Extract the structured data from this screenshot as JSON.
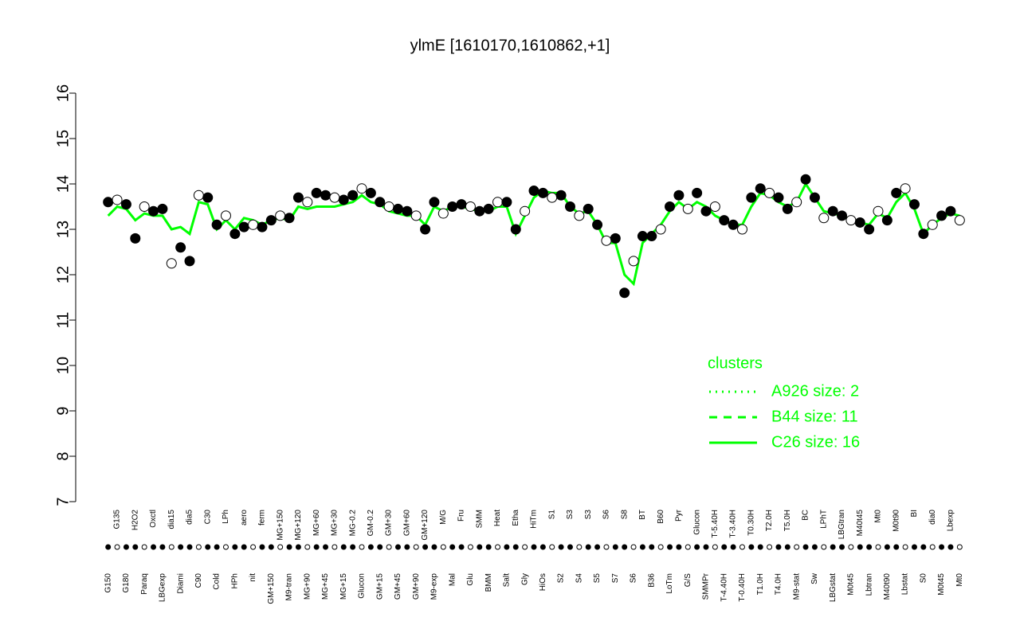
{
  "chart_data": {
    "type": "scatter",
    "title": "ylmE [1610170,1610862,+1]",
    "categories": [
      "G150",
      "G135",
      "G180",
      "H2O2",
      "Paraq",
      "Oxctl",
      "LBGexp",
      "dia15",
      "Diami",
      "dia5",
      "C90",
      "C30",
      "Cold",
      "LPh",
      "HPh",
      "aero",
      "nit",
      "ferm",
      "GM+150",
      "MG+150",
      "M9-tran",
      "MG+120",
      "MG+90",
      "MG+60",
      "MG+45",
      "MG+30",
      "MG+15",
      "MG-0.2",
      "Glucon",
      "GM-0.2",
      "GM+15",
      "GM+30",
      "GM+45",
      "GM+60",
      "GM+90",
      "GM+120",
      "M9-exp",
      "M/G",
      "Mal",
      "Fru",
      "Glu",
      "SMM",
      "BMM",
      "Heat",
      "Salt",
      "Etha",
      "Gly",
      "HiTm",
      "HiOs",
      "S1",
      "S2",
      "S3",
      "S4",
      "S3",
      "S5",
      "S6",
      "S7",
      "S8",
      "S6",
      "BT",
      "B36",
      "B60",
      "LoTm",
      "Pyr",
      "G/S",
      "Glucon",
      "SMMPr",
      "T-5.40H",
      "T-4.40H",
      "T-3.40H",
      "T-0.40H",
      "T0.30H",
      "T1.0H",
      "T2.0H",
      "T4.0H",
      "T5.0H",
      "M9-stat",
      "BC",
      "Sw",
      "LPhT",
      "LBGstat",
      "LBGtran",
      "M0t45",
      "M40t45",
      "Lbtran",
      "Mt0",
      "M40t90",
      "M0t90",
      "Lbstat",
      "BI",
      "S0",
      "dia0",
      "M0t45",
      "Lbexp",
      "Mt0"
    ],
    "values": [
      13.6,
      13.65,
      13.55,
      12.8,
      13.5,
      13.4,
      13.45,
      12.25,
      12.6,
      12.3,
      13.75,
      13.7,
      13.1,
      13.3,
      12.9,
      13.05,
      13.1,
      13.05,
      13.2,
      13.3,
      13.25,
      13.7,
      13.6,
      13.8,
      13.75,
      13.7,
      13.65,
      13.75,
      13.9,
      13.8,
      13.6,
      13.5,
      13.45,
      13.4,
      13.3,
      13.0,
      13.6,
      13.35,
      13.5,
      13.55,
      13.5,
      13.4,
      13.45,
      13.6,
      13.6,
      13.0,
      13.4,
      13.85,
      13.8,
      13.7,
      13.75,
      13.5,
      13.3,
      13.45,
      13.1,
      12.75,
      12.8,
      11.6,
      12.3,
      12.85,
      12.85,
      13.0,
      13.5,
      13.75,
      13.45,
      13.8,
      13.4,
      13.5,
      13.2,
      13.1,
      13.0,
      13.7,
      13.9,
      13.8,
      13.7,
      13.45,
      13.6,
      14.1,
      13.7,
      13.25,
      13.4,
      13.3,
      13.2,
      13.15,
      13.0,
      13.4,
      13.2,
      13.8,
      13.9,
      13.55,
      12.9,
      13.1,
      13.3,
      13.4,
      13.2
    ],
    "series": [
      {
        "name": "C26 size: 16",
        "color": "#00ff00",
        "style": "solid",
        "values": [
          13.3,
          13.5,
          13.45,
          13.2,
          13.35,
          13.3,
          13.3,
          13.0,
          13.05,
          12.9,
          13.6,
          13.55,
          13.0,
          13.2,
          13.0,
          13.25,
          13.2,
          13.1,
          13.2,
          13.25,
          13.2,
          13.5,
          13.45,
          13.5,
          13.5,
          13.5,
          13.55,
          13.6,
          13.75,
          13.6,
          13.55,
          13.4,
          13.35,
          13.3,
          13.3,
          13.1,
          13.5,
          13.4,
          13.5,
          13.5,
          13.45,
          13.4,
          13.4,
          13.5,
          13.5,
          12.9,
          13.3,
          13.7,
          13.85,
          13.8,
          13.8,
          13.5,
          13.35,
          13.4,
          13.1,
          12.7,
          12.7,
          12.0,
          11.8,
          12.7,
          12.9,
          13.1,
          13.4,
          13.6,
          13.45,
          13.6,
          13.5,
          13.3,
          13.2,
          13.1,
          13.1,
          13.5,
          13.8,
          13.75,
          13.6,
          13.5,
          13.6,
          14.0,
          13.7,
          13.4,
          13.35,
          13.3,
          13.2,
          13.15,
          13.1,
          13.35,
          13.25,
          13.6,
          13.8,
          13.45,
          12.9,
          13.1,
          13.25,
          13.35,
          13.3
        ]
      }
    ],
    "legend": {
      "title": "clusters",
      "entries": [
        {
          "name": "A926 size: 2",
          "style": "dotted",
          "color": "#00ff00"
        },
        {
          "name": "B44 size: 11",
          "style": "dashed",
          "color": "#00ff00"
        },
        {
          "name": "C26 size: 16",
          "style": "solid",
          "color": "#00ff00"
        }
      ]
    },
    "ylim": [
      7,
      16
    ],
    "yticks": [
      7,
      8,
      9,
      10,
      11,
      12,
      13,
      14,
      15,
      16
    ]
  }
}
